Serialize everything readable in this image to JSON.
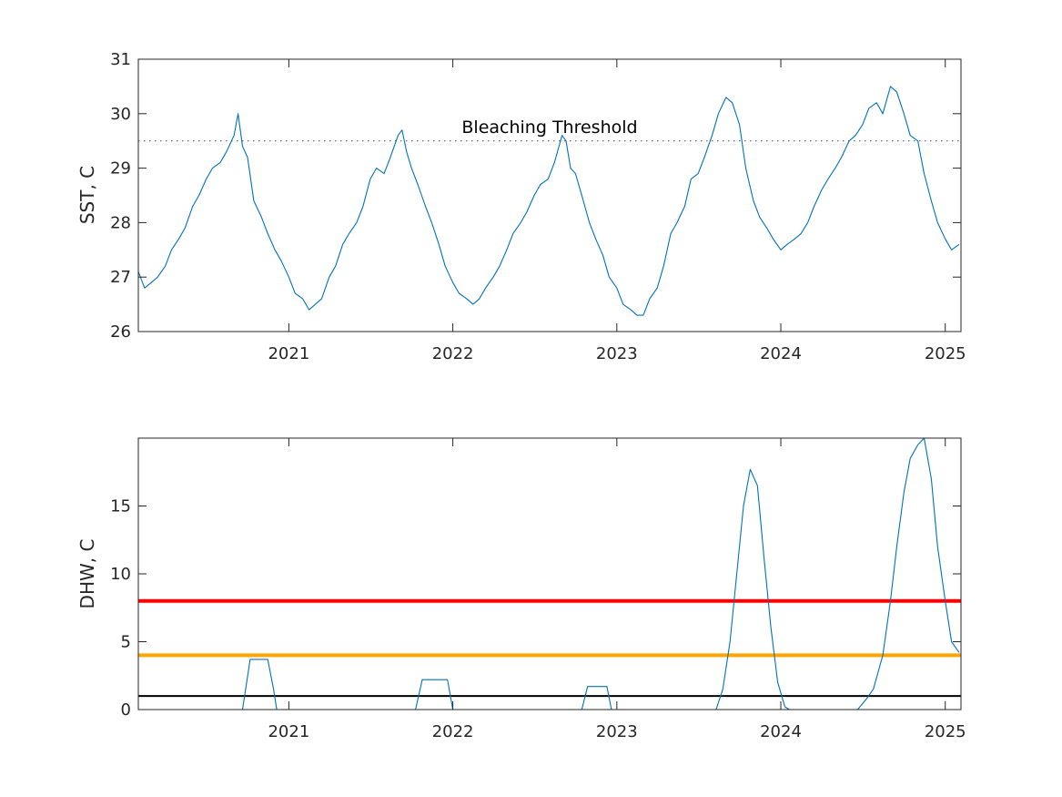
{
  "chart_data": [
    {
      "type": "line",
      "ylabel": "SST, C",
      "ylim": [
        26,
        31
      ],
      "xlim": [
        "2020-02-01",
        "2025-02-05"
      ],
      "yticks": [
        26,
        27,
        28,
        29,
        30,
        31
      ],
      "xticks": [
        "2021",
        "2022",
        "2023",
        "2024",
        "2025"
      ],
      "grid": false,
      "colors": {
        "series": "#0072BD",
        "threshold": "#5a5a8c"
      },
      "reference_lines": [
        {
          "label": "Bleaching Threshold",
          "value": 29.5,
          "style": "dotted"
        }
      ],
      "series": [
        {
          "x": [
            "2020-02-01",
            "2020-02-15",
            "2020-03-01",
            "2020-03-15",
            "2020-04-01",
            "2020-04-15",
            "2020-05-01",
            "2020-05-15",
            "2020-06-01",
            "2020-06-15",
            "2020-07-01",
            "2020-07-15",
            "2020-08-01",
            "2020-08-15",
            "2020-09-01",
            "2020-09-10",
            "2020-09-20",
            "2020-10-01",
            "2020-10-15",
            "2020-11-01",
            "2020-11-15",
            "2020-12-01",
            "2020-12-15",
            "2021-01-01",
            "2021-01-15",
            "2021-02-01",
            "2021-02-15",
            "2021-03-01",
            "2021-03-15",
            "2021-04-01",
            "2021-04-15",
            "2021-05-01",
            "2021-05-15",
            "2021-06-01",
            "2021-06-15",
            "2021-07-01",
            "2021-07-15",
            "2021-08-01",
            "2021-08-15",
            "2021-09-01",
            "2021-09-10",
            "2021-09-20",
            "2021-10-01",
            "2021-10-15",
            "2021-11-01",
            "2021-11-15",
            "2021-12-01",
            "2021-12-15",
            "2022-01-01",
            "2022-01-15",
            "2022-02-01",
            "2022-02-15",
            "2022-03-01",
            "2022-03-15",
            "2022-04-01",
            "2022-04-15",
            "2022-05-01",
            "2022-05-15",
            "2022-06-01",
            "2022-06-15",
            "2022-07-01",
            "2022-07-15",
            "2022-08-01",
            "2022-08-15",
            "2022-09-01",
            "2022-09-10",
            "2022-09-20",
            "2022-10-01",
            "2022-10-15",
            "2022-11-01",
            "2022-11-15",
            "2022-12-01",
            "2022-12-15",
            "2023-01-01",
            "2023-01-15",
            "2023-02-01",
            "2023-02-15",
            "2023-03-01",
            "2023-03-15",
            "2023-04-01",
            "2023-04-15",
            "2023-05-01",
            "2023-05-15",
            "2023-06-01",
            "2023-06-15",
            "2023-07-01",
            "2023-07-15",
            "2023-08-01",
            "2023-08-15",
            "2023-09-01",
            "2023-09-15",
            "2023-10-01",
            "2023-10-15",
            "2023-11-01",
            "2023-11-15",
            "2023-12-01",
            "2023-12-15",
            "2024-01-01",
            "2024-01-15",
            "2024-02-01",
            "2024-02-15",
            "2024-03-01",
            "2024-03-15",
            "2024-04-01",
            "2024-04-15",
            "2024-05-01",
            "2024-05-15",
            "2024-06-01",
            "2024-06-15",
            "2024-07-01",
            "2024-07-15",
            "2024-08-01",
            "2024-08-15",
            "2024-09-01",
            "2024-09-15",
            "2024-10-01",
            "2024-10-15",
            "2024-11-01",
            "2024-11-15",
            "2024-12-01",
            "2024-12-15",
            "2025-01-01",
            "2025-01-15",
            "2025-02-01"
          ],
          "y": [
            27.1,
            26.8,
            26.9,
            27.0,
            27.2,
            27.5,
            27.7,
            27.9,
            28.3,
            28.5,
            28.8,
            29.0,
            29.1,
            29.3,
            29.6,
            30.0,
            29.4,
            29.2,
            28.4,
            28.1,
            27.8,
            27.5,
            27.3,
            27.0,
            26.7,
            26.6,
            26.4,
            26.5,
            26.6,
            27.0,
            27.2,
            27.6,
            27.8,
            28.0,
            28.3,
            28.8,
            29.0,
            28.9,
            29.2,
            29.6,
            29.7,
            29.3,
            29.0,
            28.7,
            28.3,
            28.0,
            27.6,
            27.2,
            26.9,
            26.7,
            26.6,
            26.5,
            26.6,
            26.8,
            27.0,
            27.2,
            27.5,
            27.8,
            28.0,
            28.2,
            28.5,
            28.7,
            28.8,
            29.1,
            29.6,
            29.5,
            29.0,
            28.9,
            28.5,
            28.0,
            27.7,
            27.4,
            27.0,
            26.8,
            26.5,
            26.4,
            26.3,
            26.3,
            26.6,
            26.8,
            27.2,
            27.8,
            28.0,
            28.3,
            28.8,
            28.9,
            29.2,
            29.6,
            30.0,
            30.3,
            30.2,
            29.8,
            29.0,
            28.4,
            28.1,
            27.9,
            27.7,
            27.5,
            27.6,
            27.7,
            27.8,
            28.0,
            28.3,
            28.6,
            28.8,
            29.0,
            29.2,
            29.5,
            29.6,
            29.8,
            30.1,
            30.2,
            30.0,
            30.5,
            30.4,
            30.0,
            29.6,
            29.5,
            28.9,
            28.4,
            28.0,
            27.7,
            27.5,
            27.6
          ]
        }
      ]
    },
    {
      "type": "line",
      "ylabel": "DHW, C",
      "ylim": [
        0,
        20
      ],
      "xlim": [
        "2020-02-01",
        "2025-02-05"
      ],
      "yticks": [
        0,
        5,
        10,
        15
      ],
      "xticks": [
        "2021",
        "2022",
        "2023",
        "2024",
        "2025"
      ],
      "grid": false,
      "colors": {
        "series": "#0072BD"
      },
      "reference_lines": [
        {
          "value": 8,
          "color": "#FF0000"
        },
        {
          "value": 4,
          "color": "#FFA500"
        },
        {
          "value": 1,
          "color": "#000000"
        }
      ],
      "series": [
        {
          "x": [
            "2020-02-01",
            "2020-09-20",
            "2020-10-07",
            "2020-11-15",
            "2020-11-28",
            "2020-12-05",
            "2021-10-10",
            "2021-10-25",
            "2021-12-20",
            "2022-01-01",
            "2022-10-15",
            "2022-10-28",
            "2022-12-10",
            "2022-12-20",
            "2023-08-10",
            "2023-08-25",
            "2023-09-10",
            "2023-09-25",
            "2023-10-10",
            "2023-10-25",
            "2023-11-10",
            "2023-11-25",
            "2023-12-10",
            "2023-12-25",
            "2024-01-10",
            "2024-01-20",
            "2024-06-20",
            "2024-07-10",
            "2024-07-25",
            "2024-08-15",
            "2024-09-01",
            "2024-09-15",
            "2024-10-01",
            "2024-10-15",
            "2024-11-01",
            "2024-11-15",
            "2024-12-01",
            "2024-12-15",
            "2025-01-01",
            "2025-01-15",
            "2025-02-01"
          ],
          "y": [
            0,
            0,
            3.7,
            3.7,
            1.5,
            0,
            0,
            2.2,
            2.2,
            0,
            0,
            1.7,
            1.7,
            0,
            0,
            1.5,
            5,
            10,
            15,
            17.7,
            16.5,
            11,
            6,
            2,
            0.2,
            0,
            0,
            0.8,
            1.5,
            4,
            8,
            12,
            16,
            18.5,
            19.5,
            20,
            17,
            12,
            8,
            5,
            4.2
          ]
        }
      ]
    }
  ]
}
